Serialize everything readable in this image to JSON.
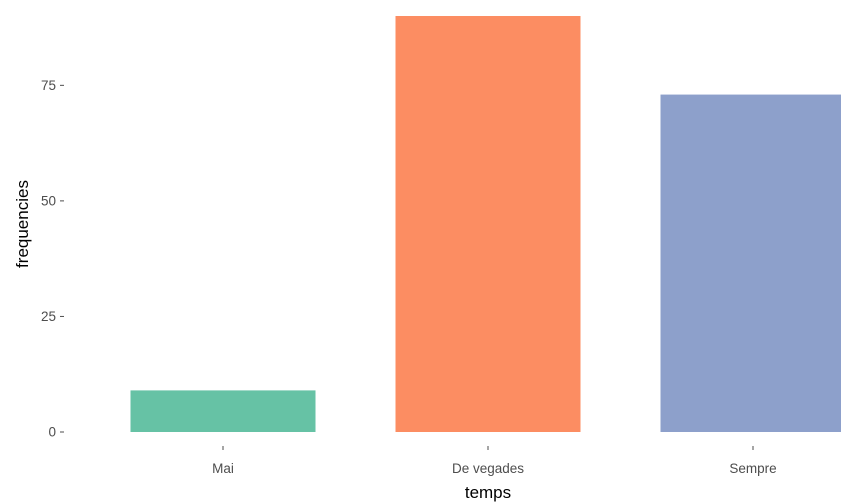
{
  "chart_data": {
    "type": "bar",
    "title": "",
    "xlabel": "temps",
    "ylabel": "frequencies",
    "categories": [
      "Mai",
      "De vegades",
      "Sempre"
    ],
    "values": [
      9,
      90,
      73
    ],
    "colors": [
      "#66c2a5",
      "#fc8d62",
      "#8da0cb"
    ],
    "yticks": [
      0,
      25,
      50,
      75
    ],
    "ylim": [
      0,
      90
    ],
    "grid": false,
    "legend": "none"
  }
}
